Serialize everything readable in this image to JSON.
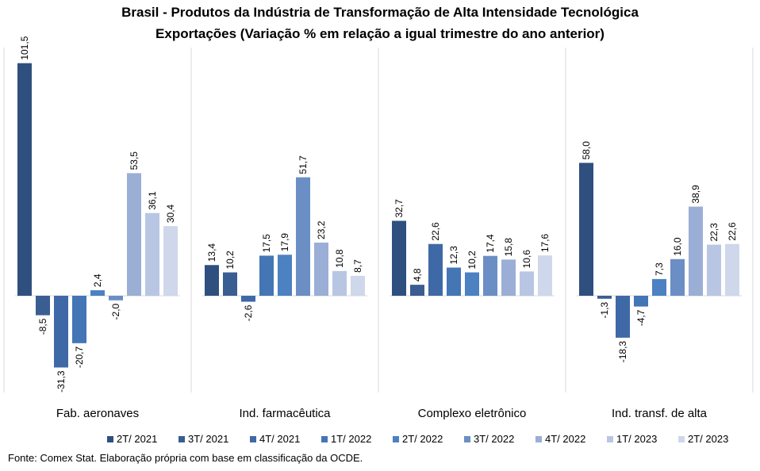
{
  "title_line1": "Brasil - Produtos da Indústria de Transformação  de Alta Intensidade Tecnológica",
  "title_line2": "Exportações (Variação % em relação a igual trimestre do ano anterior)",
  "source": "Fonte: Comex Stat. Elaboração própria com base em classificação da OCDE.",
  "chart_data": {
    "type": "bar",
    "title": "Brasil - Produtos da Indústria de Transformação  de Alta Intensidade Tecnológica — Exportações (Variação % em relação a igual trimestre do ano anterior)",
    "categories": [
      "Fab. aeronaves",
      "Ind. farmacêutica",
      "Complexo eletrônico",
      "Ind. transf. de alta"
    ],
    "series": [
      {
        "name": "2T/ 2021",
        "color": "#2f4f7f",
        "values": [
          101.5,
          13.4,
          32.7,
          58.0
        ],
        "labels": [
          "101,5",
          "13,4",
          "32,7",
          "58,0"
        ]
      },
      {
        "name": "3T/ 2021",
        "color": "#3a5d92",
        "values": [
          -8.5,
          10.2,
          4.8,
          -1.3
        ],
        "labels": [
          "-8,5",
          "10,2",
          "4,8",
          "-1,3"
        ]
      },
      {
        "name": "4T/ 2021",
        "color": "#3f69a6",
        "values": [
          -31.3,
          -2.6,
          22.6,
          -18.3
        ],
        "labels": [
          "-31,3",
          "-2,6",
          "22,6",
          "-18,3"
        ]
      },
      {
        "name": "1T/ 2022",
        "color": "#4475b5",
        "values": [
          -20.7,
          17.5,
          12.3,
          -4.7
        ],
        "labels": [
          "-20,7",
          "17,5",
          "12,3",
          "-4,7"
        ]
      },
      {
        "name": "2T/ 2022",
        "color": "#4c81c2",
        "values": [
          2.4,
          17.9,
          10.2,
          7.3
        ],
        "labels": [
          "2,4",
          "17,9",
          "10,2",
          "7,3"
        ]
      },
      {
        "name": "3T/ 2022",
        "color": "#6b8ec4",
        "values": [
          -2.0,
          51.7,
          17.4,
          16.0
        ],
        "labels": [
          "-2,0",
          "51,7",
          "17,4",
          "16,0"
        ]
      },
      {
        "name": "4T/ 2022",
        "color": "#9aaed6",
        "values": [
          53.5,
          23.2,
          15.8,
          38.9
        ],
        "labels": [
          "53,5",
          "23,2",
          "15,8",
          "38,9"
        ]
      },
      {
        "name": "1T/ 2023",
        "color": "#b8c6e3",
        "values": [
          36.1,
          10.8,
          10.6,
          22.3
        ],
        "labels": [
          "36,1",
          "10,8",
          "10,6",
          "22,3"
        ]
      },
      {
        "name": "2T/ 2023",
        "color": "#cfd7ea",
        "values": [
          30.4,
          8.7,
          17.6,
          22.6
        ],
        "labels": [
          "30,4",
          "8,7",
          "17,6",
          "22,6"
        ]
      }
    ],
    "ylim": [
      -43,
      110
    ],
    "grid": false,
    "legend": "bottom",
    "data_labels": "rotated-vertical"
  }
}
